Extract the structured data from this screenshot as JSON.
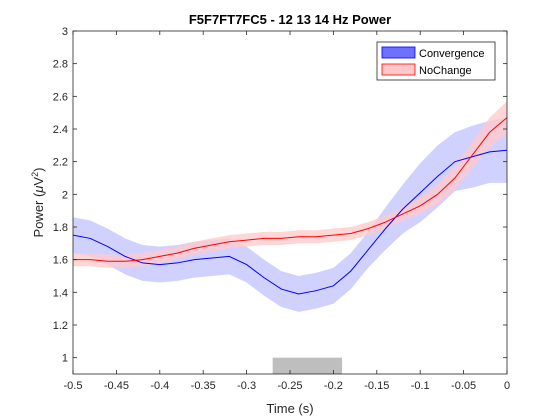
{
  "chart_data": {
    "type": "line",
    "title": "F5F7FT7FC5 - 12  13  14 Hz Power",
    "xlabel": "Time (s)",
    "ylabel_parts": {
      "pre": "Power (",
      "mu": "μ",
      "post": "V",
      "sup": "2",
      "close": ")"
    },
    "xlim": [
      -0.5,
      0
    ],
    "ylim": [
      0.9,
      3
    ],
    "xticks": [
      -0.5,
      -0.45,
      -0.4,
      -0.35,
      -0.3,
      -0.25,
      -0.2,
      -0.15,
      -0.1,
      -0.05,
      0
    ],
    "xtick_labels": [
      "-0.5",
      "-0.45",
      "-0.4",
      "-0.35",
      "-0.3",
      "-0.25",
      "-0.2",
      "-0.15",
      "-0.1",
      "-0.05",
      "0"
    ],
    "yticks": [
      1,
      1.2,
      1.4,
      1.6,
      1.8,
      2,
      2.2,
      2.4,
      2.6,
      2.8,
      3
    ],
    "ytick_labels": [
      "1",
      "1.2",
      "1.4",
      "1.6",
      "1.8",
      "2",
      "2.2",
      "2.4",
      "2.6",
      "2.8",
      "3"
    ],
    "grid": false,
    "legend_position": "top-right",
    "x": [
      -0.5,
      -0.48,
      -0.46,
      -0.44,
      -0.42,
      -0.4,
      -0.38,
      -0.36,
      -0.34,
      -0.32,
      -0.3,
      -0.28,
      -0.26,
      -0.24,
      -0.22,
      -0.2,
      -0.18,
      -0.16,
      -0.14,
      -0.12,
      -0.1,
      -0.08,
      -0.06,
      -0.04,
      -0.02,
      0
    ],
    "series": [
      {
        "name": "Convergence",
        "color": "#0000ff",
        "fill": "#c9c9ff",
        "values": [
          1.75,
          1.73,
          1.68,
          1.62,
          1.58,
          1.57,
          1.58,
          1.6,
          1.61,
          1.62,
          1.57,
          1.49,
          1.42,
          1.39,
          1.41,
          1.44,
          1.53,
          1.66,
          1.79,
          1.91,
          2.01,
          2.11,
          2.2,
          2.23,
          2.26,
          2.27
        ],
        "upper": [
          1.86,
          1.84,
          1.79,
          1.73,
          1.69,
          1.68,
          1.69,
          1.71,
          1.72,
          1.73,
          1.68,
          1.6,
          1.53,
          1.5,
          1.52,
          1.55,
          1.64,
          1.77,
          1.92,
          2.06,
          2.19,
          2.3,
          2.38,
          2.42,
          2.45,
          2.47
        ],
        "lower": [
          1.64,
          1.62,
          1.57,
          1.51,
          1.47,
          1.46,
          1.47,
          1.49,
          1.5,
          1.51,
          1.46,
          1.38,
          1.31,
          1.28,
          1.3,
          1.33,
          1.42,
          1.55,
          1.66,
          1.76,
          1.83,
          1.92,
          2.02,
          2.04,
          2.07,
          2.07
        ]
      },
      {
        "name": "NoChange",
        "color": "#ff0000",
        "fill": "#ffc8c8",
        "values": [
          1.6,
          1.6,
          1.59,
          1.59,
          1.6,
          1.62,
          1.64,
          1.67,
          1.69,
          1.71,
          1.72,
          1.73,
          1.73,
          1.74,
          1.74,
          1.75,
          1.76,
          1.79,
          1.83,
          1.88,
          1.93,
          2.0,
          2.1,
          2.24,
          2.38,
          2.47
        ],
        "upper": [
          1.64,
          1.64,
          1.63,
          1.63,
          1.64,
          1.66,
          1.68,
          1.71,
          1.73,
          1.75,
          1.76,
          1.77,
          1.77,
          1.78,
          1.78,
          1.79,
          1.8,
          1.83,
          1.87,
          1.92,
          1.98,
          2.06,
          2.17,
          2.32,
          2.47,
          2.57
        ],
        "lower": [
          1.56,
          1.56,
          1.55,
          1.55,
          1.56,
          1.58,
          1.6,
          1.63,
          1.65,
          1.67,
          1.68,
          1.69,
          1.69,
          1.7,
          1.7,
          1.71,
          1.72,
          1.75,
          1.79,
          1.84,
          1.88,
          1.94,
          2.03,
          2.16,
          2.29,
          2.37
        ]
      }
    ],
    "significance_bar": {
      "x_start": -0.27,
      "x_end": -0.19,
      "y_bottom": 0.9,
      "y_top": 1.0,
      "color": "#bebebe"
    }
  }
}
